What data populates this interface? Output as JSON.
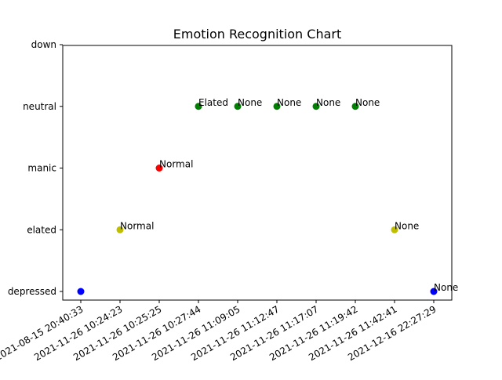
{
  "chart_data": {
    "type": "scatter",
    "title": "Emotion Recognition Chart",
    "xlabel": "",
    "ylabel": "",
    "y_categories": [
      "depressed",
      "elated",
      "manic",
      "neutral",
      "down"
    ],
    "x": [
      "2021-08-15 20:40:33",
      "2021-11-26 10:24:23",
      "2021-11-26 10:25:25",
      "2021-11-26 10:27:44",
      "2021-11-26 11:09:05",
      "2021-11-26 11:12:47",
      "2021-11-26 11:17:07",
      "2021-11-26 11:19:42",
      "2021-11-26 11:42:41",
      "2021-12-16 22:27:29"
    ],
    "points": [
      {
        "x": "2021-08-15 20:40:33",
        "y": "depressed",
        "color": "#0000ff",
        "label": ""
      },
      {
        "x": "2021-11-26 10:24:23",
        "y": "elated",
        "color": "#bfbf00",
        "label": "Normal"
      },
      {
        "x": "2021-11-26 10:25:25",
        "y": "manic",
        "color": "#ff0000",
        "label": "Normal"
      },
      {
        "x": "2021-11-26 10:27:44",
        "y": "neutral",
        "color": "#008000",
        "label": "Elated"
      },
      {
        "x": "2021-11-26 11:09:05",
        "y": "neutral",
        "color": "#008000",
        "label": "None"
      },
      {
        "x": "2021-11-26 11:12:47",
        "y": "neutral",
        "color": "#008000",
        "label": "None"
      },
      {
        "x": "2021-11-26 11:17:07",
        "y": "neutral",
        "color": "#008000",
        "label": "None"
      },
      {
        "x": "2021-11-26 11:19:42",
        "y": "neutral",
        "color": "#008000",
        "label": "None"
      },
      {
        "x": "2021-11-26 11:42:41",
        "y": "elated",
        "color": "#bfbf00",
        "label": "None"
      },
      {
        "x": "2021-12-16 22:27:29",
        "y": "depressed",
        "color": "#0000ff",
        "label": "None"
      }
    ],
    "grid": false,
    "legend": "none"
  }
}
